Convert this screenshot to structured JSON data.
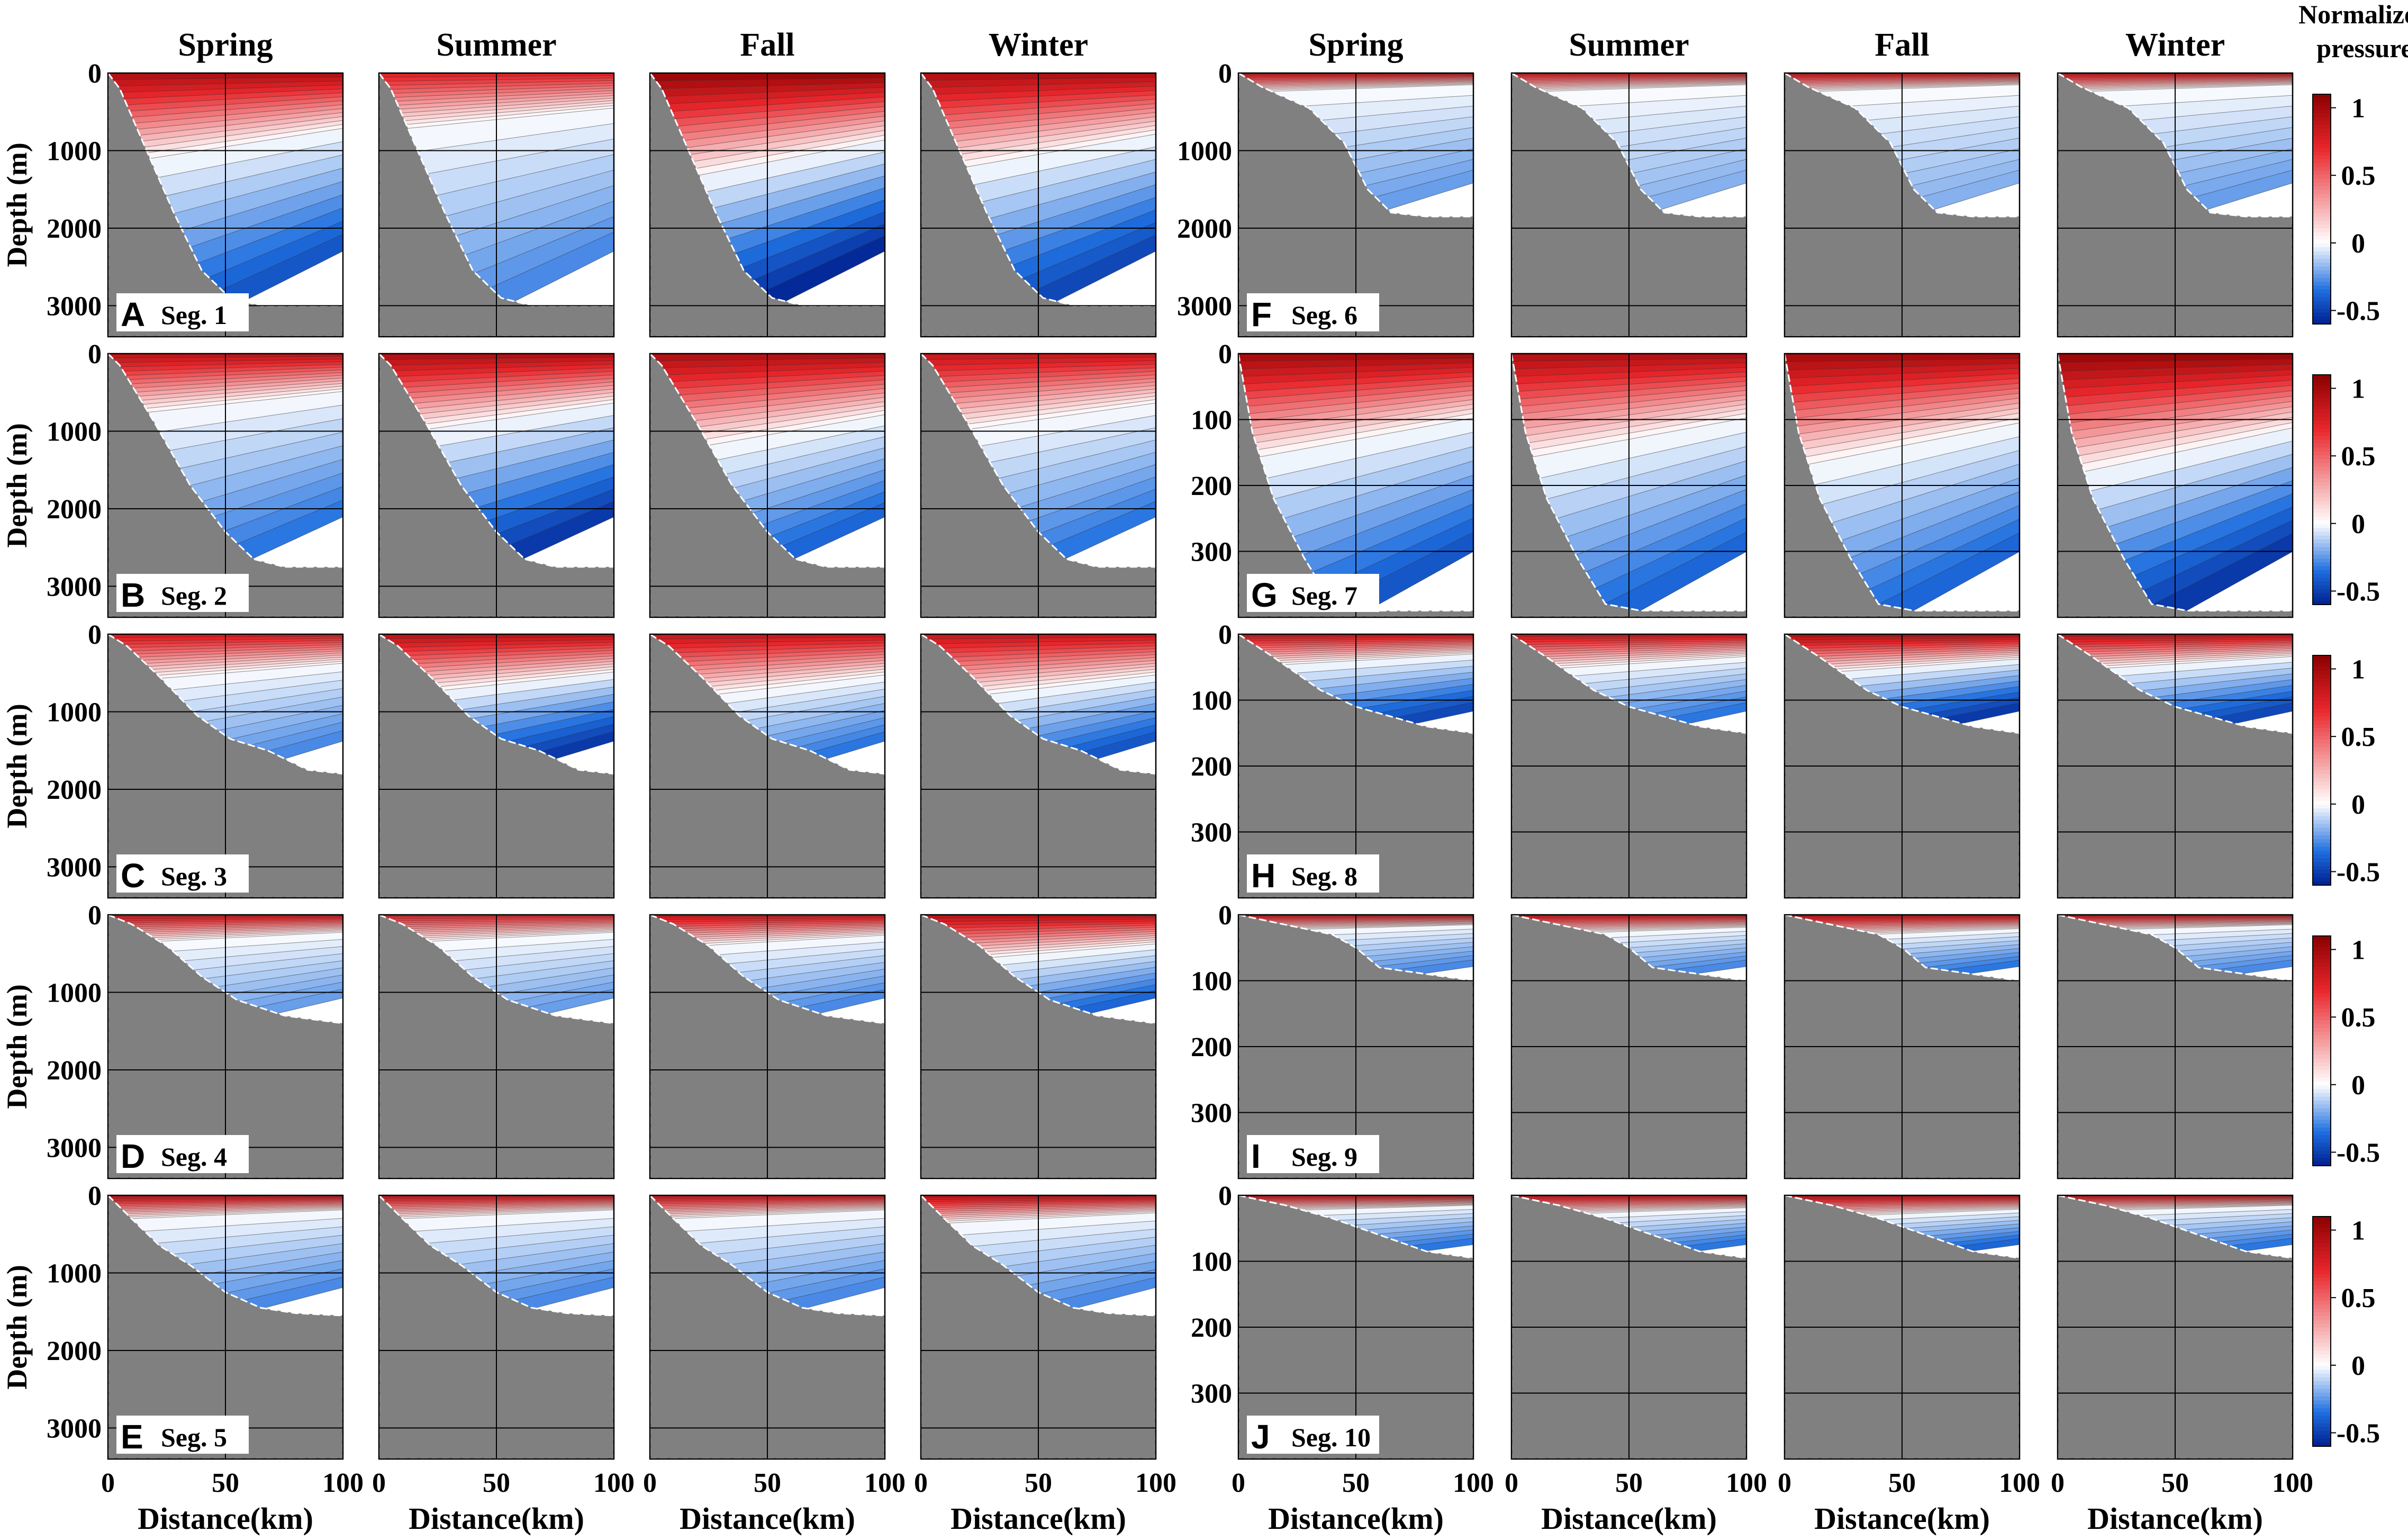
{
  "chart_data": {
    "type": "contour",
    "title": "",
    "quantity": "Normalized pressure",
    "seasons": [
      "Spring",
      "Summer",
      "Fall",
      "Winter"
    ],
    "xlabel": "Distance(km)",
    "ylabel": "Depth (m)",
    "x_ticks": [
      "0",
      "50",
      "100"
    ],
    "xlim": [
      0,
      100
    ],
    "colorbar": {
      "title_line1": "Normalized",
      "title_line2": "pressure",
      "range": [
        -0.6,
        1.1
      ],
      "ticks": [
        "1",
        "0.5",
        "0",
        "-0.5"
      ],
      "tick_values": [
        1,
        0.5,
        0,
        -0.5
      ],
      "colors": {
        "max": "#8b0000",
        "positive": "#e8262b",
        "zero": "#ffffff",
        "negative": "#1f6fe0",
        "min": "#001f8f"
      }
    },
    "left_group": {
      "y_ticks": [
        "0",
        "1000",
        "2000",
        "3000"
      ],
      "y_tick_values": [
        0,
        1000,
        2000,
        3000
      ],
      "ylim": [
        0,
        3400
      ],
      "segments": [
        {
          "letter": "A",
          "label": "Seg. 1",
          "depth_km": [
            [
              0,
              0
            ],
            [
              5,
              200
            ],
            [
              15,
              900
            ],
            [
              28,
              1800
            ],
            [
              40,
              2550
            ],
            [
              52,
              2900
            ],
            [
              65,
              3000
            ],
            [
              100,
              3000
            ]
          ],
          "panels": [
            {
              "season": "Spring",
              "pos_depth": 950,
              "pos_max": 0.95,
              "neg_min": -0.45
            },
            {
              "season": "Summer",
              "pos_depth": 600,
              "pos_max": 0.75,
              "neg_min": -0.3
            },
            {
              "season": "Fall",
              "pos_depth": 1150,
              "pos_max": 1.05,
              "neg_min": -0.6
            },
            {
              "season": "Winter",
              "pos_depth": 1050,
              "pos_max": 0.95,
              "neg_min": -0.5
            }
          ]
        },
        {
          "letter": "B",
          "label": "Seg. 2",
          "depth_km": [
            [
              0,
              0
            ],
            [
              5,
              150
            ],
            [
              20,
              900
            ],
            [
              35,
              1700
            ],
            [
              50,
              2300
            ],
            [
              62,
              2650
            ],
            [
              75,
              2750
            ],
            [
              100,
              2750
            ]
          ],
          "panels": [
            {
              "season": "Spring",
              "pos_depth": 650,
              "pos_max": 0.9,
              "neg_min": -0.35
            },
            {
              "season": "Summer",
              "pos_depth": 850,
              "pos_max": 0.95,
              "neg_min": -0.55
            },
            {
              "season": "Fall",
              "pos_depth": 1050,
              "pos_max": 0.95,
              "neg_min": -0.4
            },
            {
              "season": "Winter",
              "pos_depth": 850,
              "pos_max": 0.85,
              "neg_min": -0.35
            }
          ]
        },
        {
          "letter": "C",
          "label": "Seg. 3",
          "depth_km": [
            [
              0,
              0
            ],
            [
              8,
              150
            ],
            [
              22,
              550
            ],
            [
              38,
              1050
            ],
            [
              52,
              1350
            ],
            [
              68,
              1500
            ],
            [
              85,
              1750
            ],
            [
              100,
              1800
            ]
          ],
          "panels": [
            {
              "season": "Spring",
              "pos_depth": 500,
              "pos_max": 0.8,
              "neg_min": -0.3
            },
            {
              "season": "Summer",
              "pos_depth": 650,
              "pos_max": 0.9,
              "neg_min": -0.55
            },
            {
              "season": "Fall",
              "pos_depth": 700,
              "pos_max": 0.85,
              "neg_min": -0.35
            },
            {
              "season": "Winter",
              "pos_depth": 700,
              "pos_max": 0.85,
              "neg_min": -0.45
            }
          ]
        },
        {
          "letter": "D",
          "label": "Seg. 4",
          "depth_km": [
            [
              0,
              0
            ],
            [
              10,
              120
            ],
            [
              25,
              400
            ],
            [
              40,
              800
            ],
            [
              55,
              1100
            ],
            [
              75,
              1300
            ],
            [
              100,
              1400
            ]
          ],
          "panels": [
            {
              "season": "Spring",
              "pos_depth": 300,
              "pos_max": 0.85,
              "neg_min": -0.25
            },
            {
              "season": "Summer",
              "pos_depth": 300,
              "pos_max": 0.75,
              "neg_min": -0.25
            },
            {
              "season": "Fall",
              "pos_depth": 350,
              "pos_max": 0.85,
              "neg_min": -0.3
            },
            {
              "season": "Winter",
              "pos_depth": 500,
              "pos_max": 0.9,
              "neg_min": -0.4
            }
          ]
        },
        {
          "letter": "E",
          "label": "Seg. 5",
          "depth_km": [
            [
              0,
              0
            ],
            [
              10,
              300
            ],
            [
              22,
              650
            ],
            [
              35,
              900
            ],
            [
              50,
              1250
            ],
            [
              65,
              1450
            ],
            [
              80,
              1520
            ],
            [
              100,
              1550
            ]
          ],
          "panels": [
            {
              "season": "Spring",
              "pos_depth": 250,
              "pos_max": 0.9,
              "neg_min": -0.3
            },
            {
              "season": "Summer",
              "pos_depth": 250,
              "pos_max": 0.85,
              "neg_min": -0.3
            },
            {
              "season": "Fall",
              "pos_depth": 250,
              "pos_max": 0.85,
              "neg_min": -0.3
            },
            {
              "season": "Winter",
              "pos_depth": 300,
              "pos_max": 0.9,
              "neg_min": -0.3
            }
          ]
        }
      ]
    },
    "right_group": {
      "y_ticks": [
        "0",
        "100",
        "200",
        "300"
      ],
      "y_tick_values": [
        0,
        100,
        200,
        300
      ],
      "ylim": [
        0,
        400
      ],
      "segments": [
        {
          "letter": "F",
          "label": "Seg. 6",
          "top_panel_y_ticks": [
            "0",
            "1000",
            "2000",
            "3000"
          ],
          "top_panel_ylim": [
            0,
            3400
          ],
          "depth_km": [
            [
              0,
              0
            ],
            [
              10,
              180
            ],
            [
              30,
              450
            ],
            [
              45,
              900
            ],
            [
              55,
              1500
            ],
            [
              65,
              1800
            ],
            [
              80,
              1850
            ],
            [
              100,
              1850
            ]
          ],
          "panels": [
            {
              "season": "Spring",
              "pos_depth": 200,
              "pos_max": 0.85,
              "neg_min": -0.25
            },
            {
              "season": "Summer",
              "pos_depth": 200,
              "pos_max": 0.8,
              "neg_min": -0.2
            },
            {
              "season": "Fall",
              "pos_depth": 200,
              "pos_max": 0.85,
              "neg_min": -0.2
            },
            {
              "season": "Winter",
              "pos_depth": 200,
              "pos_max": 0.85,
              "neg_min": -0.25
            }
          ]
        },
        {
          "letter": "G",
          "label": "Seg. 7",
          "depth_km": [
            [
              0,
              0
            ],
            [
              6,
              120
            ],
            [
              15,
              220
            ],
            [
              28,
              310
            ],
            [
              40,
              380
            ],
            [
              55,
              390
            ],
            [
              100,
              390
            ]
          ],
          "panels": [
            {
              "season": "Spring",
              "pos_depth": 130,
              "pos_max": 1.0,
              "neg_min": -0.45
            },
            {
              "season": "Summer",
              "pos_depth": 130,
              "pos_max": 0.95,
              "neg_min": -0.4
            },
            {
              "season": "Fall",
              "pos_depth": 140,
              "pos_max": 1.0,
              "neg_min": -0.4
            },
            {
              "season": "Winter",
              "pos_depth": 150,
              "pos_max": 1.05,
              "neg_min": -0.55
            }
          ]
        },
        {
          "letter": "H",
          "label": "Seg. 8",
          "depth_km": [
            [
              0,
              0
            ],
            [
              15,
              35
            ],
            [
              35,
              85
            ],
            [
              50,
              110
            ],
            [
              65,
              125
            ],
            [
              80,
              140
            ],
            [
              100,
              150
            ]
          ],
          "panels": [
            {
              "season": "Spring",
              "pos_depth": 40,
              "pos_max": 0.85,
              "neg_min": -0.5
            },
            {
              "season": "Summer",
              "pos_depth": 45,
              "pos_max": 0.85,
              "neg_min": -0.35
            },
            {
              "season": "Fall",
              "pos_depth": 50,
              "pos_max": 0.95,
              "neg_min": -0.55
            },
            {
              "season": "Winter",
              "pos_depth": 45,
              "pos_max": 0.9,
              "neg_min": -0.5
            }
          ]
        },
        {
          "letter": "I",
          "label": "Seg. 9",
          "depth_km": [
            [
              0,
              0
            ],
            [
              20,
              15
            ],
            [
              40,
              30
            ],
            [
              50,
              50
            ],
            [
              60,
              80
            ],
            [
              80,
              90
            ],
            [
              100,
              100
            ]
          ],
          "panels": [
            {
              "season": "Spring",
              "pos_depth": 20,
              "pos_max": 0.85,
              "neg_min": -0.3
            },
            {
              "season": "Summer",
              "pos_depth": 25,
              "pos_max": 0.85,
              "neg_min": -0.3
            },
            {
              "season": "Fall",
              "pos_depth": 28,
              "pos_max": 0.9,
              "neg_min": -0.35
            },
            {
              "season": "Winter",
              "pos_depth": 20,
              "pos_max": 0.85,
              "neg_min": -0.3
            }
          ]
        },
        {
          "letter": "J",
          "label": "Seg. 10",
          "depth_km": [
            [
              0,
              0
            ],
            [
              20,
              15
            ],
            [
              40,
              35
            ],
            [
              60,
              60
            ],
            [
              80,
              85
            ],
            [
              100,
              95
            ]
          ],
          "panels": [
            {
              "season": "Spring",
              "pos_depth": 20,
              "pos_max": 0.85,
              "neg_min": -0.35
            },
            {
              "season": "Summer",
              "pos_depth": 25,
              "pos_max": 0.85,
              "neg_min": -0.35
            },
            {
              "season": "Fall",
              "pos_depth": 28,
              "pos_max": 0.9,
              "neg_min": -0.4
            },
            {
              "season": "Winter",
              "pos_depth": 20,
              "pos_max": 0.85,
              "neg_min": -0.35
            }
          ]
        }
      ]
    },
    "bathymetry_color": "#808080"
  }
}
